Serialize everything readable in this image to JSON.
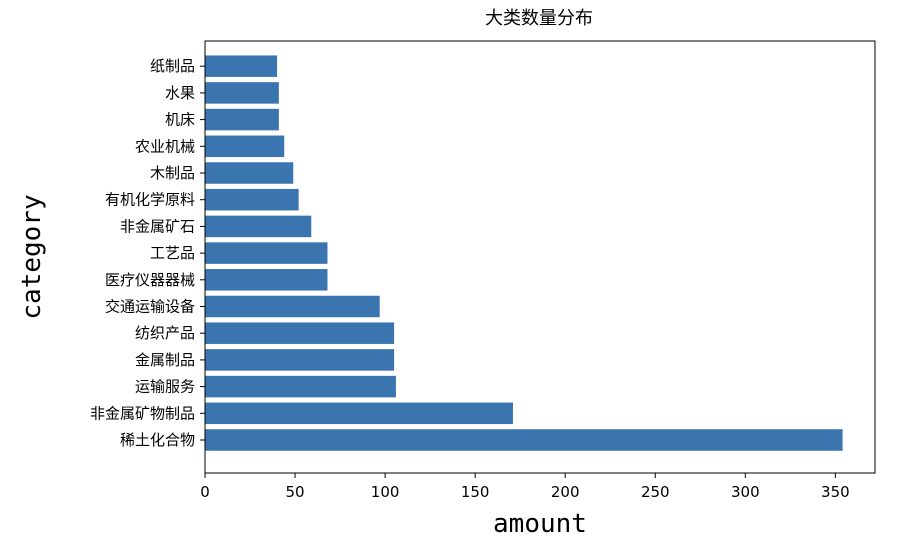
{
  "chart_data": {
    "type": "bar",
    "orientation": "horizontal",
    "title": "大类数量分布",
    "xlabel": "amount",
    "ylabel": "category",
    "xlim": [
      0,
      372
    ],
    "xticks": [
      0,
      50,
      100,
      150,
      200,
      250,
      300,
      350
    ],
    "bar_color": "#3b75af",
    "categories": [
      "稀土化合物",
      "非金属矿物制品",
      "运输服务",
      "金属制品",
      "纺织产品",
      "交通运输设备",
      "医疗仪器器械",
      "工艺品",
      "非金属矿石",
      "有机化学原料",
      "木制品",
      "农业机械",
      "机床",
      "水果",
      "纸制品"
    ],
    "values": [
      354,
      171,
      106,
      105,
      105,
      97,
      68,
      68,
      59,
      52,
      49,
      44,
      41,
      41,
      40
    ]
  }
}
